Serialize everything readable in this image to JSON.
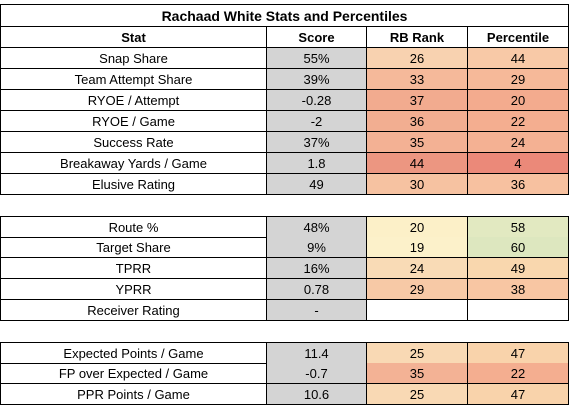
{
  "title": "Rachaad White Stats and Percentiles",
  "headers": {
    "stat": "Stat",
    "score": "Score",
    "rank": "RB Rank",
    "percentile": "Percentile"
  },
  "sections": [
    {
      "rows": [
        {
          "stat": "Snap Share",
          "score": "55%",
          "rank": "26",
          "pct": "44",
          "rank_color": "#f8d2b0",
          "pct_color": "#f8c9a7"
        },
        {
          "stat": "Team Attempt Share",
          "score": "39%",
          "rank": "33",
          "pct": "29",
          "rank_color": "#f5b99a",
          "pct_color": "#f6b999"
        },
        {
          "stat": "RYOE / Attempt",
          "score": "-0.28",
          "rank": "37",
          "pct": "20",
          "rank_color": "#f2ab8f",
          "pct_color": "#f3ab8e"
        },
        {
          "stat": "RYOE / Game",
          "score": "-2",
          "rank": "36",
          "pct": "22",
          "rank_color": "#f2ae91",
          "pct_color": "#f4ae90"
        },
        {
          "stat": "Success Rate",
          "score": "37%",
          "rank": "35",
          "pct": "24",
          "rank_color": "#f3b194",
          "pct_color": "#f4b193"
        },
        {
          "stat": "Breakaway Yards / Game",
          "score": "1.8",
          "rank": "44",
          "pct": "4",
          "rank_color": "#ec9681",
          "pct_color": "#eb8979"
        },
        {
          "stat": "Elusive Rating",
          "score": "49",
          "rank": "30",
          "pct": "36",
          "rank_color": "#f6c2a1",
          "pct_color": "#f7c1a0"
        }
      ]
    },
    {
      "rows": [
        {
          "stat": "Route %",
          "score": "48%",
          "rank": "20",
          "pct": "58",
          "rank_color": "#fcf0c8",
          "pct_color": "#e2e9c1"
        },
        {
          "stat": "Target Share",
          "score": "9%",
          "rank": "19",
          "pct": "60",
          "rank_color": "#fcf1ca",
          "pct_color": "#dde7bf"
        },
        {
          "stat": "TPRR",
          "score": "16%",
          "rank": "24",
          "pct": "49",
          "rank_color": "#f9dbb6",
          "pct_color": "#f9d7ae"
        },
        {
          "stat": "YPRR",
          "score": "0.78",
          "rank": "29",
          "pct": "38",
          "rank_color": "#f7c9a6",
          "pct_color": "#f8c6a3"
        },
        {
          "stat": "Receiver Rating",
          "score": "-",
          "rank": "",
          "pct": "",
          "rank_color": "#ffffff",
          "pct_color": "#ffffff"
        }
      ]
    },
    {
      "rows": [
        {
          "stat": "Expected Points / Game",
          "score": "11.4",
          "rank": "25",
          "pct": "47",
          "rank_color": "#f9d9b4",
          "pct_color": "#f9d3ab"
        },
        {
          "stat": "FP over Expected / Game",
          "score": "-0.7",
          "rank": "35",
          "pct": "22",
          "rank_color": "#f3b295",
          "pct_color": "#f4ae90"
        },
        {
          "stat": "PPR Points / Game",
          "score": "10.6",
          "rank": "25",
          "pct": "47",
          "rank_color": "#f9d9b4",
          "pct_color": "#f9d3ab"
        }
      ]
    }
  ]
}
